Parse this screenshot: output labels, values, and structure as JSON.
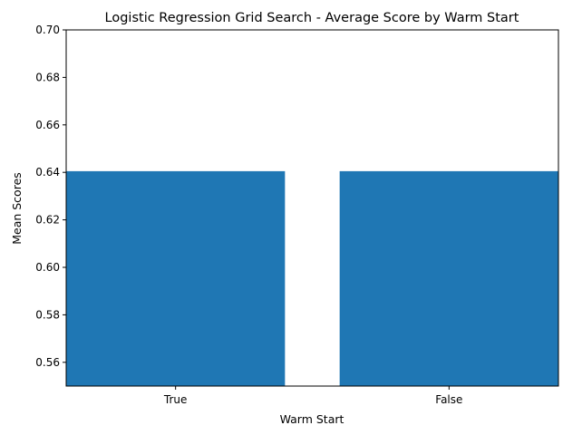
{
  "chart_data": {
    "type": "bar",
    "title": "Logistic Regression Grid Search - Average Score by Warm Start",
    "xlabel": "Warm Start",
    "ylabel": "Mean Scores",
    "categories": [
      "True",
      "False"
    ],
    "values": [
      0.6405,
      0.6405
    ],
    "ylim": [
      0.55,
      0.7
    ],
    "yticks": [
      "0.56",
      "0.58",
      "0.60",
      "0.62",
      "0.64",
      "0.66",
      "0.68",
      "0.70"
    ],
    "grid": false,
    "bar_color": "#1f77b4"
  }
}
